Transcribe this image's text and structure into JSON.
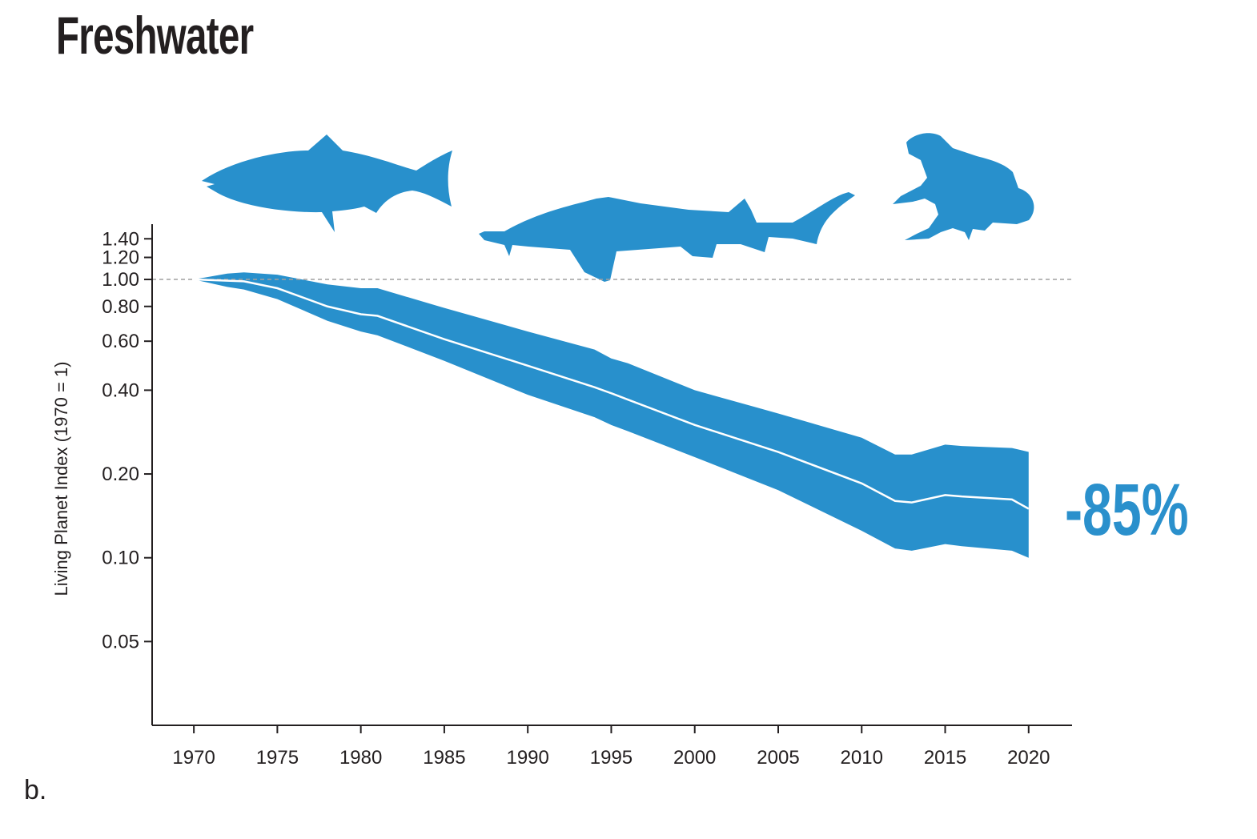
{
  "title": "Freshwater",
  "panel_label": "b.",
  "colors": {
    "band": "#2890cc",
    "line": "#ffffff",
    "axis": "#231f20",
    "ref": "#a0a0a0"
  },
  "icons": [
    "salmon-icon",
    "sturgeon-icon",
    "frog-icon"
  ],
  "chart_data": {
    "type": "area",
    "title": "Freshwater",
    "xlabel": "",
    "ylabel": "Living Planet Index (1970 = 1)",
    "yscale": "log",
    "xlim": [
      1967.5,
      2022.6
    ],
    "ylim": [
      0.025,
      1.58
    ],
    "x_ticks": [
      "1970",
      "1975",
      "1980",
      "1985",
      "1990",
      "1995",
      "2000",
      "2005",
      "2010",
      "2015",
      "2020"
    ],
    "y_ticks": [
      "1.40",
      "1.20",
      "1.00",
      "0.80",
      "0.60",
      "0.40",
      "0.20",
      "0.10",
      "0.05"
    ],
    "reference_line": 1.0,
    "annotation": "-85%",
    "x": [
      1970,
      1972,
      1973,
      1975,
      1978,
      1980,
      1981,
      1985,
      1990,
      1994,
      1995,
      1996,
      2000,
      2005,
      2010,
      2012,
      2013,
      2015,
      2016,
      2019,
      2020
    ],
    "series": [
      {
        "name": "upper",
        "values": [
          1.0,
          1.05,
          1.06,
          1.04,
          0.96,
          0.93,
          0.93,
          0.79,
          0.65,
          0.56,
          0.52,
          0.5,
          0.4,
          0.33,
          0.27,
          0.235,
          0.235,
          0.255,
          0.252,
          0.248,
          0.24
        ]
      },
      {
        "name": "index",
        "values": [
          1.0,
          0.99,
          0.985,
          0.93,
          0.8,
          0.75,
          0.74,
          0.61,
          0.49,
          0.41,
          0.39,
          0.37,
          0.3,
          0.24,
          0.185,
          0.16,
          0.158,
          0.168,
          0.166,
          0.162,
          0.15
        ]
      },
      {
        "name": "lower",
        "values": [
          1.0,
          0.94,
          0.92,
          0.85,
          0.71,
          0.65,
          0.63,
          0.51,
          0.385,
          0.32,
          0.3,
          0.285,
          0.23,
          0.175,
          0.125,
          0.108,
          0.106,
          0.112,
          0.11,
          0.106,
          0.1
        ]
      }
    ],
    "grid": false,
    "legend": "none"
  }
}
